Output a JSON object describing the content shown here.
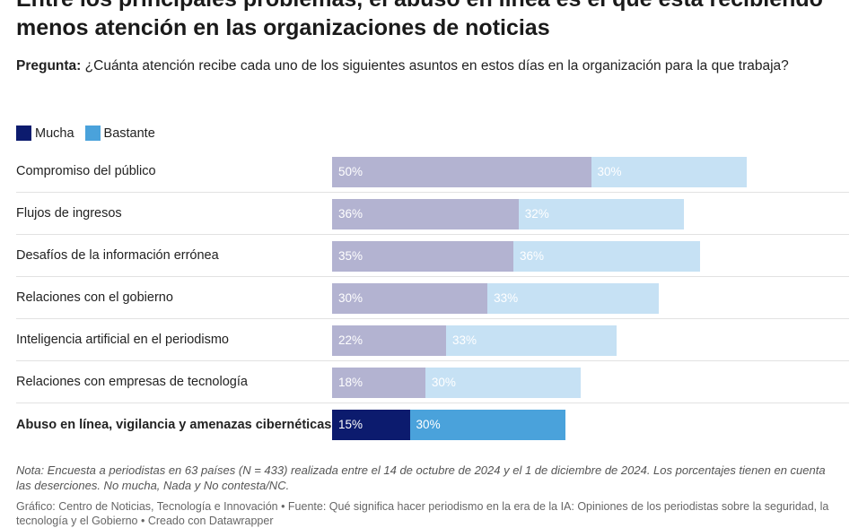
{
  "title": "Entre los principales problemas, el abuso en línea es el que está recibiendo menos atención en las organizaciones de noticias",
  "question_label": "Pregunta:",
  "question_text": "¿Cuánta atención recibe cada uno de los siguientes asuntos en estos días en la organización para la que trabaja?",
  "colors": {
    "mucha": "#b3b3d1",
    "bastante": "#c6e1f4",
    "mucha_highlight": "#0c1b6e",
    "bastante_highlight": "#4aa2db"
  },
  "chart_data": {
    "type": "bar",
    "orientation": "horizontal",
    "stacked": true,
    "legend_position": "top-left",
    "categories": [
      "Compromiso del público",
      "Flujos de ingresos",
      "Desafíos de la información errónea",
      "Relaciones con el gobierno",
      "Inteligencia artificial en el periodismo",
      "Relaciones con empresas de tecnología",
      "Abuso en línea, vigilancia y amenazas cibernéticas"
    ],
    "highlighted_category": "Abuso en línea, vigilancia y amenazas cibernéticas",
    "series": [
      {
        "name": "Mucha",
        "values": [
          50,
          36,
          35,
          30,
          22,
          18,
          15
        ]
      },
      {
        "name": "Bastante",
        "values": [
          30,
          32,
          36,
          33,
          33,
          30,
          30
        ]
      }
    ],
    "value_suffix": "%",
    "xlim": [
      0,
      100
    ]
  },
  "note": "Nota: Encuesta a periodistas en 63 países (N = 433) realizada entre el 14 de octubre de 2024 y el 1 de diciembre de 2024. Los porcentajes tienen en cuenta las deserciones. No mucha, Nada y No contesta/NC.",
  "source": "Gráfico: Centro de Noticias, Tecnología e Innovación • Fuente: Qué significa hacer periodismo en la era de la IA: Opiniones de los periodistas sobre la seguridad, la tecnología y el Gobierno • Creado con Datawrapper"
}
